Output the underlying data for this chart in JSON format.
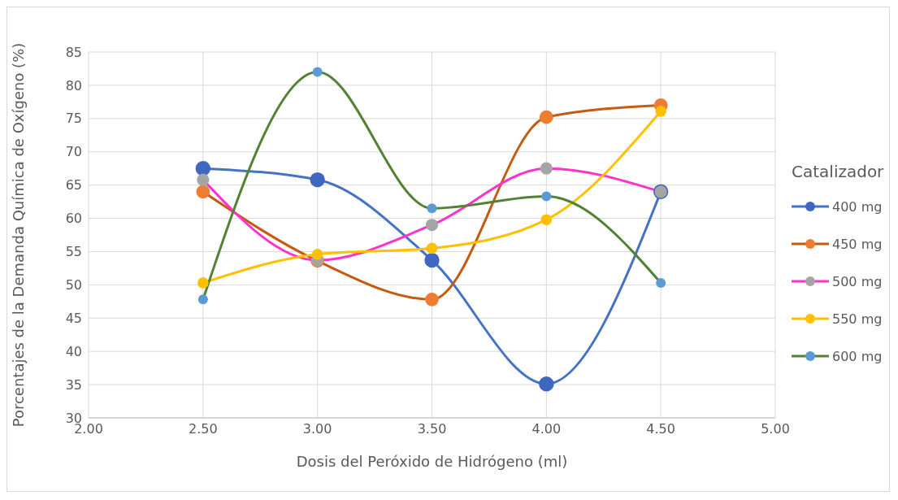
{
  "chart_data": {
    "type": "line",
    "xlabel": "Dosis del Peróxido de Hidrógeno (ml)",
    "ylabel": "Porcentajes de la Demanda Química de Oxígeno (%)",
    "legend_title": "Catalizador",
    "x": [
      2.5,
      3.0,
      3.5,
      4.0,
      4.5
    ],
    "series": [
      {
        "name": "400 mg",
        "color": "#4472c4",
        "colors": [
          "#3f67c0",
          "#3f67c0",
          "#3f67c0",
          "#3f67c0",
          "#3f67c0"
        ],
        "values": [
          67.5,
          65.8,
          53.7,
          35.1,
          64
        ]
      },
      {
        "name": "450 mg",
        "color": "#c55a11",
        "colors": [
          "#ed7d31",
          "#ed7d31",
          "#ed7d31",
          "#ed7d31",
          "#ed7d31"
        ],
        "values": [
          64,
          53.6,
          47.8,
          75.2,
          77
        ]
      },
      {
        "name": "500 mg",
        "color": "#ff33cc",
        "colors": [
          "#a5a5a5",
          "#a5a5a5",
          "#a5a5a5",
          "#a5a5a5",
          "#a5a5a5"
        ],
        "values": [
          65.8,
          53.7,
          59,
          67.5,
          64
        ]
      },
      {
        "name": "550 mg",
        "color": "#ffc000",
        "colors": [
          "#ffc000",
          "#ffc000",
          "#ffc000",
          "#ffc000",
          "#ffc000"
        ],
        "values": [
          50.3,
          54.6,
          55.5,
          59.8,
          76.1
        ]
      },
      {
        "name": "600 mg",
        "color": "#548235",
        "colors": [
          "#5b9bd5",
          "#5b9bd5",
          "#5b9bd5",
          "#5b9bd5",
          "#5b9bd5"
        ],
        "values": [
          47.8,
          82,
          61.5,
          63.3,
          50.3
        ]
      }
    ],
    "xlim": [
      2,
      5
    ],
    "xticks": [
      {
        "value": 2,
        "label": "2.00"
      },
      {
        "value": 2.5,
        "label": "2.50"
      },
      {
        "value": 3,
        "label": "3.00"
      },
      {
        "value": 3.5,
        "label": "3.50"
      },
      {
        "value": 4,
        "label": "4.00"
      },
      {
        "value": 4.5,
        "label": "4.50"
      },
      {
        "value": 5,
        "label": "5.00"
      }
    ],
    "ylim": [
      30,
      85
    ],
    "yticks": [
      30,
      35,
      40,
      45,
      50,
      55,
      60,
      65,
      70,
      75,
      80,
      85
    ],
    "grid": true,
    "legend": "right",
    "marker": "circle",
    "line_style": "solid"
  }
}
